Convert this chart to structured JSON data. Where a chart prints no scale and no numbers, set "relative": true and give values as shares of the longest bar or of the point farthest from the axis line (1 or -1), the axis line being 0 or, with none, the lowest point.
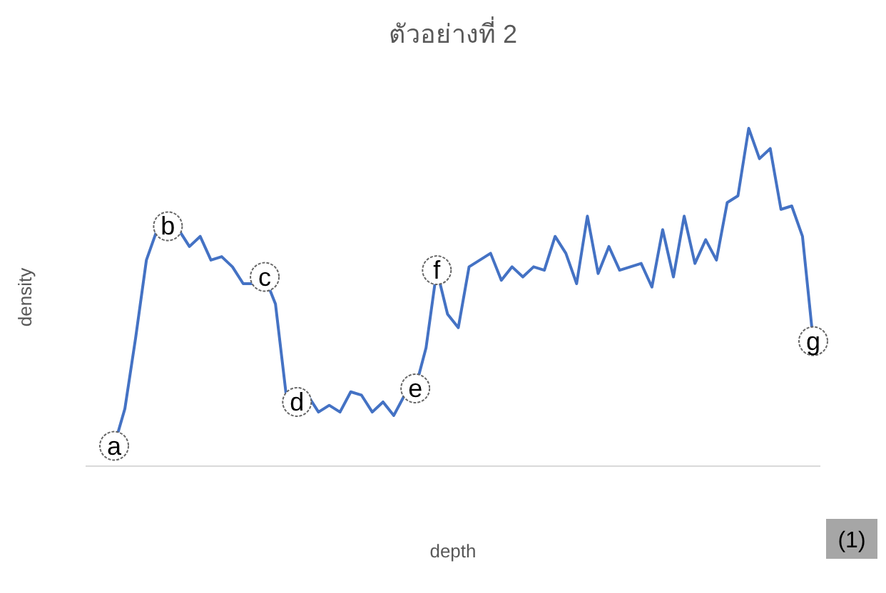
{
  "chart_data": {
    "type": "line",
    "title": "ตัวอย่างที่ 2",
    "xlabel": "depth",
    "ylabel": "density",
    "relative": true,
    "marker": "none",
    "line_style": "solid",
    "categories": [
      null,
      null,
      null,
      null,
      null,
      null,
      null,
      null,
      null,
      null,
      null,
      null,
      null,
      null,
      null,
      null,
      null,
      null,
      null,
      null,
      null,
      null,
      null,
      null,
      null,
      null,
      null,
      null,
      null,
      null,
      null,
      null,
      null,
      null,
      null,
      null,
      null,
      null,
      null,
      null,
      null,
      null,
      null,
      null,
      null,
      null,
      null,
      null,
      null,
      null,
      null,
      null,
      null,
      null,
      null,
      null,
      null,
      null,
      null,
      null,
      null,
      null,
      null,
      null,
      null,
      null
    ],
    "series": [
      {
        "color": "#4472c4",
        "values": [
          0.06,
          0.17,
          0.38,
          0.61,
          0.7,
          0.71,
          0.7,
          0.65,
          0.68,
          0.61,
          0.62,
          0.59,
          0.54,
          0.54,
          0.56,
          0.48,
          0.21,
          0.19,
          0.21,
          0.16,
          0.18,
          0.16,
          0.22,
          0.21,
          0.16,
          0.19,
          0.15,
          0.21,
          0.23,
          0.35,
          0.58,
          0.45,
          0.41,
          0.59,
          0.61,
          0.63,
          0.55,
          0.59,
          0.56,
          0.59,
          0.58,
          0.68,
          0.63,
          0.54,
          0.74,
          0.57,
          0.65,
          0.58,
          0.59,
          0.6,
          0.53,
          0.7,
          0.56,
          0.74,
          0.6,
          0.67,
          0.61,
          0.78,
          0.8,
          1,
          0.91,
          0.94,
          0.76,
          0.77,
          0.68,
          0.37
        ]
      }
    ],
    "annotations": [
      {
        "text": "a",
        "y": 0.06
      },
      {
        "text": "b",
        "y": 0.71
      },
      {
        "text": "c",
        "y": 0.56
      },
      {
        "text": "d",
        "y": 0.19
      },
      {
        "text": "e",
        "y": 0.23
      },
      {
        "text": "f",
        "y": 0.58
      },
      {
        "text": "g",
        "y": 0.37
      },
      "(1)"
    ]
  }
}
